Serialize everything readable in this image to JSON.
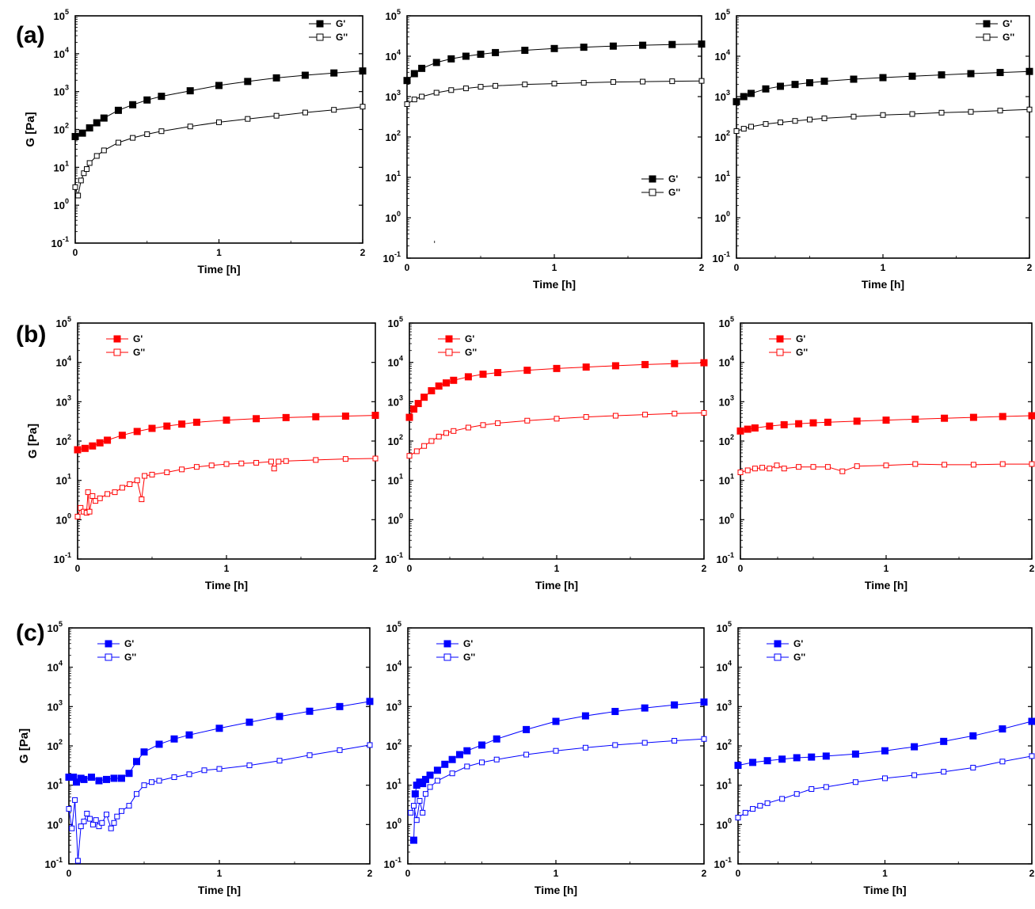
{
  "row_labels": [
    "(a)",
    "(b)",
    "(c)"
  ],
  "colors": {
    "a": "#000000",
    "b": "#ff0000",
    "c": "#0000ff"
  },
  "chart_data": [
    {
      "row": "a",
      "col": 0,
      "type": "line",
      "xlabel": "Time [h]",
      "ylabel": "G [Pa]",
      "xlim": [
        0,
        2
      ],
      "ylim": [
        0.1,
        100000
      ],
      "yscale": "log",
      "xticks": [
        "0",
        "1",
        "2"
      ],
      "legend_pos": "top-right",
      "series": [
        {
          "name": "G'",
          "marker": "filled-square",
          "x": [
            0,
            0.05,
            0.1,
            0.15,
            0.2,
            0.3,
            0.4,
            0.5,
            0.6,
            0.8,
            1.0,
            1.2,
            1.4,
            1.6,
            1.8,
            2.0
          ],
          "y": [
            65,
            80,
            110,
            150,
            200,
            320,
            450,
            600,
            750,
            1050,
            1450,
            1850,
            2300,
            2700,
            3100,
            3500
          ]
        },
        {
          "name": "G''",
          "marker": "open-square",
          "x": [
            0,
            0.02,
            0.04,
            0.06,
            0.08,
            0.1,
            0.15,
            0.2,
            0.3,
            0.4,
            0.5,
            0.6,
            0.8,
            1.0,
            1.2,
            1.4,
            1.6,
            1.8,
            2.0
          ],
          "y": [
            3,
            1.8,
            4.5,
            7,
            9,
            13,
            20,
            28,
            45,
            60,
            75,
            90,
            120,
            155,
            190,
            230,
            280,
            330,
            400
          ]
        }
      ]
    },
    {
      "row": "a",
      "col": 1,
      "type": "line",
      "xlabel": "Time [h]",
      "ylabel": "",
      "xlim": [
        0,
        2
      ],
      "ylim": [
        0.1,
        100000
      ],
      "yscale": "log",
      "xticks": [
        "0",
        "1",
        "2"
      ],
      "legend_pos": "lower-right",
      "series": [
        {
          "name": "G'",
          "marker": "filled-square",
          "x": [
            0,
            0.05,
            0.1,
            0.2,
            0.3,
            0.4,
            0.5,
            0.6,
            0.8,
            1.0,
            1.2,
            1.4,
            1.6,
            1.8,
            2.0
          ],
          "y": [
            2500,
            3700,
            5000,
            7000,
            8600,
            10000,
            11200,
            12300,
            14000,
            15500,
            16700,
            17800,
            18700,
            19500,
            20000
          ]
        },
        {
          "name": "G''",
          "marker": "open-square",
          "x": [
            0,
            0.05,
            0.1,
            0.2,
            0.3,
            0.4,
            0.5,
            0.6,
            0.8,
            1.0,
            1.2,
            1.4,
            1.6,
            1.8,
            2.0
          ],
          "y": [
            650,
            850,
            1000,
            1250,
            1450,
            1600,
            1750,
            1850,
            2000,
            2100,
            2200,
            2300,
            2350,
            2400,
            2450
          ]
        }
      ]
    },
    {
      "row": "a",
      "col": 2,
      "type": "line",
      "xlabel": "Time [h]",
      "ylabel": "",
      "xlim": [
        0,
        2
      ],
      "ylim": [
        0.1,
        100000
      ],
      "yscale": "log",
      "xticks": [
        "0",
        "1",
        "2"
      ],
      "legend_pos": "top-right",
      "series": [
        {
          "name": "G'",
          "marker": "filled-square",
          "x": [
            0,
            0.05,
            0.1,
            0.2,
            0.3,
            0.4,
            0.5,
            0.6,
            0.8,
            1.0,
            1.2,
            1.4,
            1.6,
            1.8,
            2.0
          ],
          "y": [
            750,
            1000,
            1200,
            1550,
            1800,
            2000,
            2200,
            2400,
            2700,
            2950,
            3200,
            3450,
            3700,
            3950,
            4200
          ]
        },
        {
          "name": "G''",
          "marker": "open-square",
          "x": [
            0,
            0.05,
            0.1,
            0.2,
            0.3,
            0.4,
            0.5,
            0.6,
            0.8,
            1.0,
            1.2,
            1.4,
            1.6,
            1.8,
            2.0
          ],
          "y": [
            140,
            160,
            180,
            210,
            230,
            250,
            270,
            290,
            320,
            350,
            370,
            400,
            420,
            450,
            480
          ]
        }
      ]
    },
    {
      "row": "b",
      "col": 0,
      "type": "line",
      "xlabel": "Time [h]",
      "ylabel": "G [Pa]",
      "xlim": [
        0,
        2
      ],
      "ylim": [
        0.1,
        100000
      ],
      "yscale": "log",
      "xticks": [
        "0",
        "1",
        "2"
      ],
      "legend_pos": "top-left",
      "series": [
        {
          "name": "G'",
          "marker": "filled-square",
          "x": [
            0,
            0.05,
            0.1,
            0.15,
            0.2,
            0.3,
            0.4,
            0.5,
            0.6,
            0.7,
            0.8,
            1.0,
            1.2,
            1.4,
            1.6,
            1.8,
            2.0
          ],
          "y": [
            60,
            65,
            75,
            90,
            105,
            140,
            175,
            210,
            240,
            270,
            300,
            340,
            370,
            395,
            415,
            430,
            450
          ]
        },
        {
          "name": "G''",
          "marker": "open-square",
          "x": [
            0,
            0.02,
            0.04,
            0.06,
            0.07,
            0.08,
            0.1,
            0.12,
            0.15,
            0.2,
            0.25,
            0.3,
            0.35,
            0.4,
            0.43,
            0.45,
            0.5,
            0.6,
            0.7,
            0.8,
            0.9,
            1.0,
            1.1,
            1.2,
            1.3,
            1.32,
            1.35,
            1.4,
            1.6,
            1.8,
            2.0
          ],
          "y": [
            1.2,
            2,
            1.6,
            1.5,
            5,
            1.6,
            4,
            3,
            3.5,
            4.5,
            5,
            6.5,
            8,
            10,
            3.3,
            13,
            14,
            16,
            19,
            22,
            24,
            26,
            27,
            28,
            30,
            20,
            30,
            31,
            33,
            35,
            36
          ]
        }
      ]
    },
    {
      "row": "b",
      "col": 1,
      "type": "line",
      "xlabel": "Time [h]",
      "ylabel": "",
      "xlim": [
        0,
        2
      ],
      "ylim": [
        0.1,
        100000
      ],
      "yscale": "log",
      "xticks": [
        "0",
        "1",
        "2"
      ],
      "legend_pos": "top-left",
      "series": [
        {
          "name": "G'",
          "marker": "filled-square",
          "x": [
            0,
            0.03,
            0.06,
            0.1,
            0.15,
            0.2,
            0.25,
            0.3,
            0.4,
            0.5,
            0.6,
            0.8,
            1.0,
            1.2,
            1.4,
            1.6,
            1.8,
            2.0
          ],
          "y": [
            400,
            650,
            900,
            1300,
            1900,
            2500,
            3000,
            3500,
            4300,
            5000,
            5500,
            6300,
            7000,
            7600,
            8200,
            8800,
            9300,
            9800
          ]
        },
        {
          "name": "G''",
          "marker": "open-square",
          "x": [
            0,
            0.05,
            0.1,
            0.15,
            0.2,
            0.25,
            0.3,
            0.4,
            0.5,
            0.6,
            0.8,
            1.0,
            1.2,
            1.4,
            1.6,
            1.8,
            2.0
          ],
          "y": [
            42,
            55,
            75,
            100,
            130,
            160,
            180,
            220,
            255,
            285,
            330,
            370,
            410,
            440,
            470,
            500,
            520
          ]
        }
      ]
    },
    {
      "row": "b",
      "col": 2,
      "type": "line",
      "xlabel": "Time [h]",
      "ylabel": "",
      "xlim": [
        0,
        2
      ],
      "ylim": [
        0.1,
        100000
      ],
      "yscale": "log",
      "xticks": [
        "0",
        "1",
        "2"
      ],
      "legend_pos": "top-left",
      "series": [
        {
          "name": "G'",
          "marker": "filled-square",
          "x": [
            0,
            0.05,
            0.1,
            0.2,
            0.3,
            0.4,
            0.5,
            0.6,
            0.8,
            1.0,
            1.2,
            1.4,
            1.6,
            1.8,
            2.0
          ],
          "y": [
            180,
            200,
            215,
            240,
            260,
            275,
            290,
            300,
            320,
            340,
            360,
            380,
            400,
            420,
            440
          ]
        },
        {
          "name": "G''",
          "marker": "open-square",
          "x": [
            0,
            0.05,
            0.1,
            0.15,
            0.2,
            0.25,
            0.3,
            0.4,
            0.5,
            0.6,
            0.7,
            0.8,
            1.0,
            1.2,
            1.4,
            1.6,
            1.8,
            2.0
          ],
          "y": [
            16,
            18,
            20,
            21,
            20,
            24,
            20,
            22,
            22,
            22,
            17,
            23,
            24,
            26,
            25,
            25,
            26,
            26
          ]
        }
      ]
    },
    {
      "row": "c",
      "col": 0,
      "type": "line",
      "xlabel": "Time [h]",
      "ylabel": "G [Pa]",
      "xlim": [
        0,
        2
      ],
      "ylim": [
        0.1,
        100000
      ],
      "yscale": "log",
      "xticks": [
        "0",
        "1",
        "2"
      ],
      "legend_pos": "top-left",
      "series": [
        {
          "name": "G'",
          "marker": "filled-square",
          "x": [
            0,
            0.03,
            0.05,
            0.08,
            0.1,
            0.15,
            0.2,
            0.25,
            0.3,
            0.35,
            0.4,
            0.45,
            0.5,
            0.6,
            0.7,
            0.8,
            1.0,
            1.2,
            1.4,
            1.6,
            1.8,
            2.0
          ],
          "y": [
            16,
            16,
            12,
            15,
            14,
            16,
            13,
            14,
            15,
            15,
            20,
            40,
            70,
            110,
            150,
            190,
            280,
            400,
            560,
            760,
            1000,
            1350
          ]
        },
        {
          "name": "G''",
          "marker": "open-square",
          "x": [
            0,
            0.02,
            0.04,
            0.06,
            0.08,
            0.1,
            0.12,
            0.14,
            0.16,
            0.18,
            0.2,
            0.22,
            0.25,
            0.28,
            0.3,
            0.32,
            0.35,
            0.4,
            0.45,
            0.5,
            0.55,
            0.6,
            0.7,
            0.8,
            0.9,
            1.0,
            1.2,
            1.4,
            1.6,
            1.8,
            2.0
          ],
          "y": [
            2.5,
            0.8,
            4.2,
            0.12,
            0.9,
            1.2,
            1.9,
            1.4,
            1,
            1.3,
            0.9,
            1.1,
            1.8,
            0.8,
            1.1,
            1.6,
            2.2,
            3,
            6,
            10,
            12,
            13,
            16,
            19,
            24,
            26,
            32,
            42,
            58,
            78,
            105
          ]
        }
      ]
    },
    {
      "row": "c",
      "col": 1,
      "type": "line",
      "xlabel": "Time [h]",
      "ylabel": "",
      "xlim": [
        0,
        2
      ],
      "ylim": [
        0.1,
        100000
      ],
      "yscale": "log",
      "xticks": [
        "0",
        "1",
        "2"
      ],
      "legend_pos": "top-left",
      "series": [
        {
          "name": "G'",
          "marker": "filled-square",
          "x": [
            0.04,
            0.05,
            0.06,
            0.08,
            0.1,
            0.12,
            0.15,
            0.2,
            0.25,
            0.3,
            0.35,
            0.4,
            0.5,
            0.6,
            0.8,
            1.0,
            1.2,
            1.4,
            1.6,
            1.8,
            2.0
          ],
          "y": [
            0.4,
            6,
            10,
            12,
            11,
            14,
            18,
            24,
            34,
            45,
            60,
            75,
            105,
            150,
            260,
            420,
            580,
            750,
            920,
            1100,
            1300
          ]
        },
        {
          "name": "G''",
          "marker": "open-square",
          "x": [
            0.02,
            0.04,
            0.06,
            0.08,
            0.1,
            0.12,
            0.15,
            0.2,
            0.3,
            0.4,
            0.5,
            0.6,
            0.8,
            1.0,
            1.2,
            1.4,
            1.6,
            1.8,
            2.0
          ],
          "y": [
            2,
            3,
            1.3,
            4,
            2,
            6,
            9,
            13,
            20,
            30,
            38,
            45,
            60,
            75,
            90,
            105,
            120,
            135,
            150
          ]
        }
      ]
    },
    {
      "row": "c",
      "col": 2,
      "type": "line",
      "xlabel": "Time [h]",
      "ylabel": "",
      "xlim": [
        0,
        2
      ],
      "ylim": [
        0.1,
        100000
      ],
      "yscale": "log",
      "xticks": [
        "0",
        "1",
        "2"
      ],
      "legend_pos": "top-left",
      "series": [
        {
          "name": "G'",
          "marker": "filled-square",
          "x": [
            0,
            0.1,
            0.2,
            0.3,
            0.4,
            0.5,
            0.6,
            0.8,
            1.0,
            1.2,
            1.4,
            1.6,
            1.8,
            2.0
          ],
          "y": [
            32,
            38,
            42,
            46,
            50,
            52,
            55,
            62,
            75,
            95,
            130,
            180,
            270,
            420
          ]
        },
        {
          "name": "G''",
          "marker": "open-square",
          "x": [
            0,
            0.05,
            0.1,
            0.15,
            0.2,
            0.3,
            0.4,
            0.5,
            0.6,
            0.8,
            1.0,
            1.2,
            1.4,
            1.6,
            1.8,
            2.0
          ],
          "y": [
            1.5,
            2,
            2.5,
            3,
            3.5,
            4.5,
            6,
            8,
            9,
            12,
            15,
            18,
            22,
            28,
            40,
            55
          ]
        }
      ]
    }
  ]
}
